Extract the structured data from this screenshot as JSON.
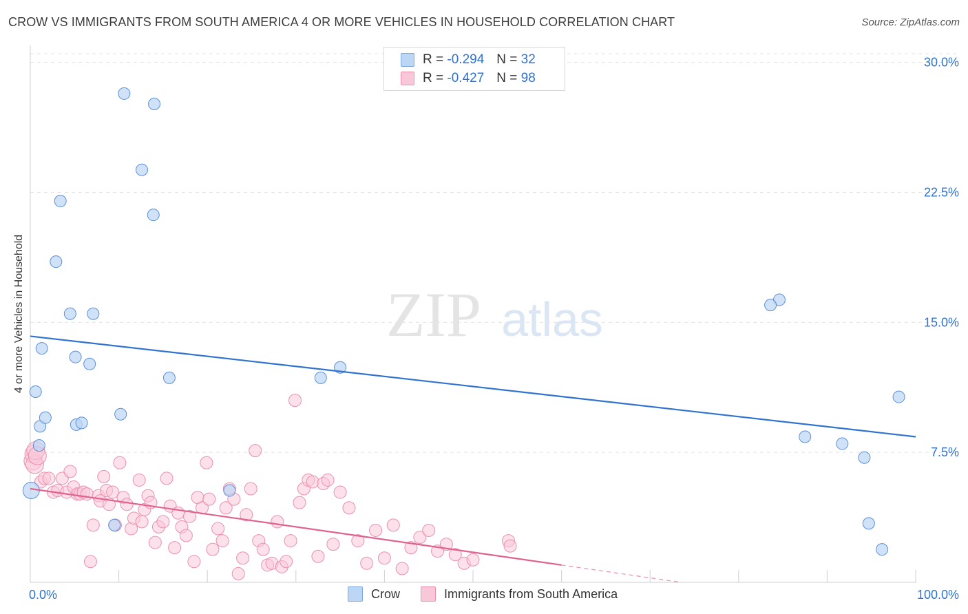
{
  "header": {
    "title": "CROW VS IMMIGRANTS FROM SOUTH AMERICA 4 OR MORE VEHICLES IN HOUSEHOLD CORRELATION CHART",
    "source": "Source: ZipAtlas.com"
  },
  "legend": {
    "crow": {
      "r_label": "R =",
      "r_value": "-0.294",
      "n_label": "N =",
      "n_value": "32"
    },
    "immigrants": {
      "r_label": "R =",
      "r_value": "-0.427",
      "n_label": "N =",
      "n_value": "98"
    }
  },
  "bottom_legend": {
    "crow": "Crow",
    "immigrants": "Immigrants from South America"
  },
  "watermark": {
    "zip": "ZIP",
    "atlas": "atlas"
  },
  "colors": {
    "crow": "#5b8fd6",
    "crow_fill": "#bcd6f5",
    "crow_line": "#2f72d0",
    "immigrants": "#ec8fac",
    "immigrants_fill": "#f9c8d8",
    "immigrants_line": "#e0618d",
    "axis_text": "#2f72d0"
  },
  "chart_data": {
    "type": "scatter",
    "title": "CROW VS IMMIGRANTS FROM SOUTH AMERICA 4 OR MORE VEHICLES IN HOUSEHOLD CORRELATION CHART",
    "xlabel": "",
    "ylabel": "4 or more Vehicles in Household",
    "xlim": [
      0,
      100
    ],
    "ylim": [
      0,
      30.5
    ],
    "x_ticks": [
      0,
      10,
      20,
      30,
      40,
      50,
      60,
      70,
      80,
      90,
      100
    ],
    "x_tick_labels": [
      "0.0%",
      "100.0%"
    ],
    "y_ticks": [
      7.5,
      15.0,
      22.5,
      30.0
    ],
    "y_tick_labels": [
      "7.5%",
      "15.0%",
      "22.5%",
      "30.0%"
    ],
    "grid": "horizontal dashed",
    "series": [
      {
        "name": "Crow",
        "R": -0.294,
        "N": 32,
        "trend": {
          "x": [
            0,
            100
          ],
          "y": [
            14.2,
            8.4
          ]
        },
        "points": [
          [
            0.1,
            5.3
          ],
          [
            0.6,
            11.0
          ],
          [
            1.0,
            7.9
          ],
          [
            1.1,
            9.0
          ],
          [
            1.3,
            13.5
          ],
          [
            1.7,
            9.5
          ],
          [
            2.9,
            18.5
          ],
          [
            3.4,
            22.0
          ],
          [
            4.5,
            15.5
          ],
          [
            5.1,
            13.0
          ],
          [
            5.2,
            9.1
          ],
          [
            5.8,
            9.2
          ],
          [
            6.7,
            12.6
          ],
          [
            7.1,
            15.5
          ],
          [
            9.5,
            3.3
          ],
          [
            10.2,
            9.7
          ],
          [
            10.6,
            28.2
          ],
          [
            12.6,
            23.8
          ],
          [
            13.9,
            21.2
          ],
          [
            14.0,
            27.6
          ],
          [
            15.7,
            11.8
          ],
          [
            22.5,
            5.3
          ],
          [
            32.8,
            11.8
          ],
          [
            35.0,
            12.4
          ],
          [
            84.6,
            16.3
          ],
          [
            83.6,
            16.0
          ],
          [
            87.5,
            8.4
          ],
          [
            91.7,
            8.0
          ],
          [
            94.2,
            7.2
          ],
          [
            94.7,
            3.4
          ],
          [
            96.2,
            1.9
          ],
          [
            98.1,
            10.7
          ]
        ]
      },
      {
        "name": "Immigrants from South America",
        "R": -0.427,
        "N": 98,
        "trend": {
          "x": [
            0,
            60
          ],
          "y": [
            5.4,
            1.0
          ]
        },
        "trend_dashed": {
          "x": [
            60,
            73.5
          ],
          "y": [
            1.0,
            0.0
          ]
        },
        "points": [
          [
            0.3,
            7.0
          ],
          [
            0.4,
            7.4
          ],
          [
            0.5,
            6.8
          ],
          [
            0.6,
            7.6
          ],
          [
            0.8,
            7.3
          ],
          [
            1.2,
            5.8
          ],
          [
            1.6,
            6.0
          ],
          [
            2.1,
            6.0
          ],
          [
            2.6,
            5.2
          ],
          [
            3.1,
            5.3
          ],
          [
            3.6,
            6.0
          ],
          [
            4.1,
            5.2
          ],
          [
            4.5,
            6.4
          ],
          [
            4.9,
            5.5
          ],
          [
            5.3,
            5.1
          ],
          [
            5.6,
            5.1
          ],
          [
            6.0,
            5.2
          ],
          [
            6.4,
            5.1
          ],
          [
            6.8,
            1.2
          ],
          [
            7.1,
            3.3
          ],
          [
            7.7,
            5.0
          ],
          [
            7.9,
            4.7
          ],
          [
            8.3,
            6.1
          ],
          [
            8.6,
            5.3
          ],
          [
            8.9,
            4.5
          ],
          [
            9.3,
            5.2
          ],
          [
            9.6,
            3.3
          ],
          [
            10.1,
            6.9
          ],
          [
            10.5,
            4.9
          ],
          [
            10.9,
            4.5
          ],
          [
            11.4,
            3.1
          ],
          [
            11.7,
            3.7
          ],
          [
            12.3,
            5.9
          ],
          [
            12.6,
            3.5
          ],
          [
            12.9,
            4.2
          ],
          [
            13.3,
            5.0
          ],
          [
            13.6,
            4.6
          ],
          [
            14.1,
            2.3
          ],
          [
            14.5,
            3.2
          ],
          [
            15.0,
            3.5
          ],
          [
            15.4,
            6.0
          ],
          [
            15.8,
            4.4
          ],
          [
            16.3,
            2.0
          ],
          [
            16.7,
            4.0
          ],
          [
            17.1,
            3.2
          ],
          [
            17.6,
            2.7
          ],
          [
            18.0,
            3.8
          ],
          [
            18.5,
            1.2
          ],
          [
            18.9,
            4.9
          ],
          [
            19.4,
            4.3
          ],
          [
            19.9,
            6.9
          ],
          [
            20.2,
            4.8
          ],
          [
            20.6,
            1.9
          ],
          [
            21.2,
            3.1
          ],
          [
            21.7,
            2.4
          ],
          [
            22.1,
            4.3
          ],
          [
            22.5,
            5.4
          ],
          [
            23.0,
            4.8
          ],
          [
            23.5,
            0.5
          ],
          [
            24.0,
            1.4
          ],
          [
            24.4,
            3.9
          ],
          [
            24.9,
            5.4
          ],
          [
            25.4,
            7.6
          ],
          [
            25.8,
            2.4
          ],
          [
            26.3,
            1.9
          ],
          [
            26.8,
            1.0
          ],
          [
            27.3,
            1.1
          ],
          [
            27.9,
            3.5
          ],
          [
            28.4,
            0.9
          ],
          [
            28.9,
            1.2
          ],
          [
            29.4,
            2.4
          ],
          [
            29.9,
            10.5
          ],
          [
            30.4,
            4.6
          ],
          [
            30.9,
            5.4
          ],
          [
            31.4,
            5.9
          ],
          [
            31.9,
            5.8
          ],
          [
            32.5,
            1.5
          ],
          [
            33.1,
            5.7
          ],
          [
            33.6,
            5.9
          ],
          [
            34.2,
            2.2
          ],
          [
            35.0,
            5.2
          ],
          [
            36.0,
            4.3
          ],
          [
            37.0,
            2.4
          ],
          [
            38.0,
            1.1
          ],
          [
            39.0,
            3.0
          ],
          [
            40.0,
            1.4
          ],
          [
            41.0,
            3.3
          ],
          [
            42.0,
            0.8
          ],
          [
            43.0,
            2.0
          ],
          [
            44.0,
            2.6
          ],
          [
            45.0,
            3.0
          ],
          [
            46.0,
            1.8
          ],
          [
            47.0,
            2.2
          ],
          [
            48.0,
            1.6
          ],
          [
            49.0,
            1.1
          ],
          [
            50.0,
            1.3
          ],
          [
            54.0,
            2.4
          ],
          [
            54.2,
            2.1
          ]
        ]
      }
    ]
  }
}
